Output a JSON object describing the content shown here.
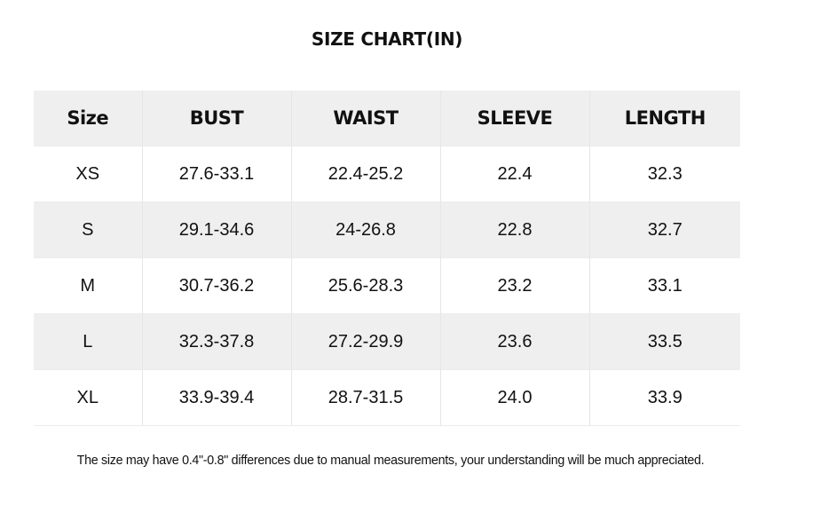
{
  "title": "SIZE CHART(IN)",
  "table": {
    "headers": [
      "Size",
      "BUST",
      "WAIST",
      "SLEEVE",
      "LENGTH"
    ],
    "rows": [
      [
        "XS",
        "27.6-33.1",
        "22.4-25.2",
        "22.4",
        "32.3"
      ],
      [
        "S",
        "29.1-34.6",
        "24-26.8",
        "22.8",
        "32.7"
      ],
      [
        "M",
        "30.7-36.2",
        "25.6-28.3",
        "23.2",
        "33.1"
      ],
      [
        "L",
        "32.3-37.8",
        "27.2-29.9",
        "23.6",
        "33.5"
      ],
      [
        "XL",
        "33.9-39.4",
        "28.7-31.5",
        "24.0",
        "33.9"
      ]
    ]
  },
  "note": "The size may have 0.4\"-0.8\" differences due to manual measurements, your understanding will be much appreciated.",
  "colors": {
    "header_bg": "#efefef",
    "stripe_bg": "#efefef",
    "text": "#111111"
  }
}
